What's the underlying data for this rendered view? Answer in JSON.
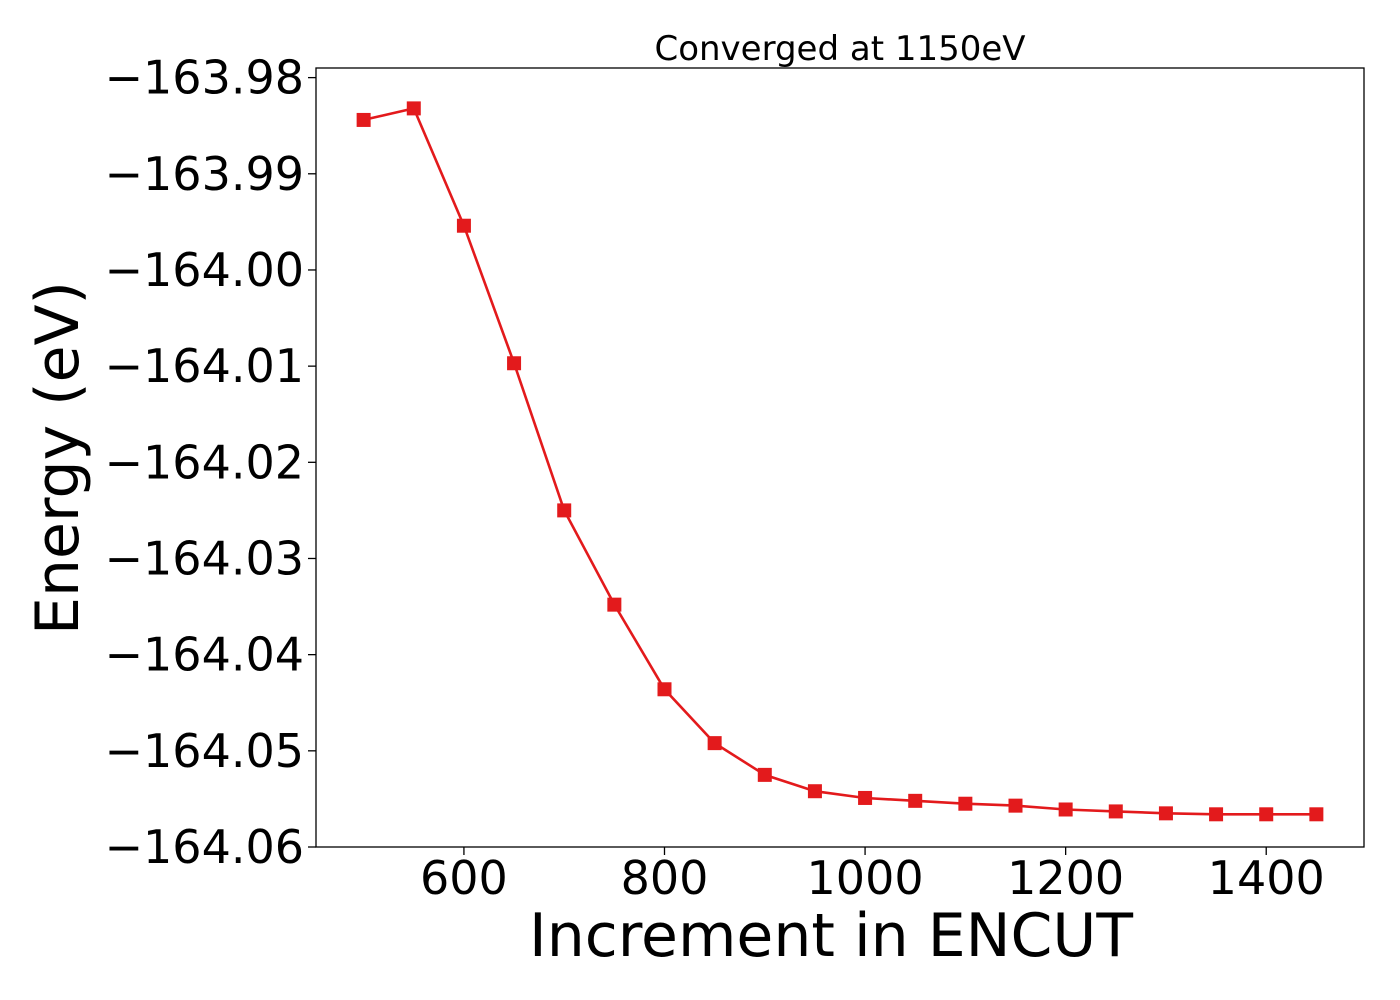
{
  "chart_data": {
    "type": "line",
    "title": "Converged at 1150eV",
    "xlabel": "Increment in ENCUT",
    "ylabel": "Energy (eV)",
    "xlim": [
      452.5,
      1497.5
    ],
    "ylim": [
      -164.06,
      -163.979
    ],
    "x_ticks": [
      600,
      800,
      1000,
      1200,
      1400
    ],
    "y_ticks": [
      -163.98,
      -163.99,
      -164.0,
      -164.01,
      -164.02,
      -164.03,
      -164.04,
      -164.05,
      -164.06
    ],
    "y_tick_labels": [
      "−163.98",
      "−163.99",
      "−164.00",
      "−164.01",
      "−164.02",
      "−164.03",
      "−164.04",
      "−164.05",
      "−164.06"
    ],
    "grid": false,
    "series": [
      {
        "color": "#e31a1c",
        "marker": "square",
        "x": [
          500,
          550,
          600,
          650,
          700,
          750,
          800,
          850,
          900,
          950,
          1000,
          1050,
          1100,
          1150,
          1200,
          1250,
          1300,
          1350,
          1400,
          1450
        ],
        "y": [
          -163.9844,
          -163.9832,
          -163.9954,
          -164.0097,
          -164.025,
          -164.0348,
          -164.0436,
          -164.0492,
          -164.0525,
          -164.0542,
          -164.0549,
          -164.0552,
          -164.0555,
          -164.0557,
          -164.0561,
          -164.0563,
          -164.0565,
          -164.0566,
          -164.0566,
          -164.0566
        ]
      }
    ]
  }
}
